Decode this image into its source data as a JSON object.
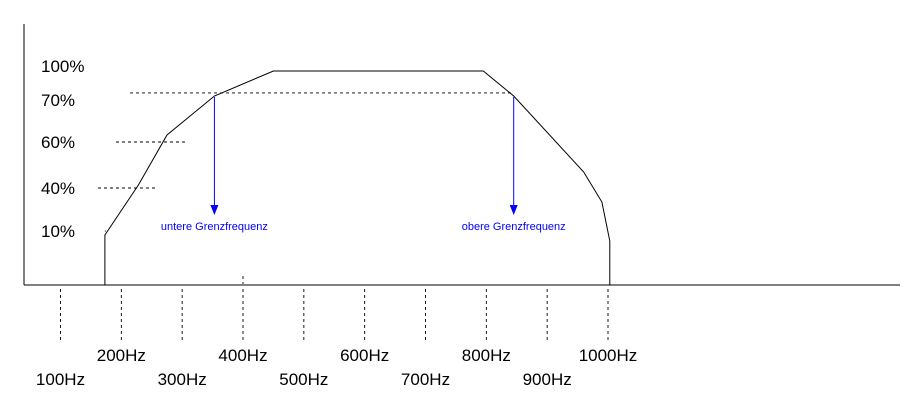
{
  "chart_data": {
    "type": "line",
    "title": "",
    "xlabel": "",
    "ylabel": "",
    "x_ticks": [
      {
        "value": 100,
        "label": "100Hz"
      },
      {
        "value": 200,
        "label": "200Hz"
      },
      {
        "value": 300,
        "label": "300Hz"
      },
      {
        "value": 400,
        "label": "400Hz"
      },
      {
        "value": 500,
        "label": "500Hz"
      },
      {
        "value": 600,
        "label": "600Hz"
      },
      {
        "value": 700,
        "label": "700Hz"
      },
      {
        "value": 800,
        "label": "800Hz"
      },
      {
        "value": 900,
        "label": "900Hz"
      },
      {
        "value": 1000,
        "label": "1000Hz"
      }
    ],
    "y_levels": [
      {
        "value": 100,
        "label": "100%",
        "guide_to_x": null
      },
      {
        "value": 70,
        "label": "70%",
        "guide_to_x": 845
      },
      {
        "value": 60,
        "label": "60%",
        "guide_to_x": 308
      },
      {
        "value": 40,
        "label": "40%",
        "guide_to_x": 258
      },
      {
        "value": 10,
        "label": "10%",
        "guide_to_x": 173
      }
    ],
    "series": [
      {
        "points": [
          {
            "x": 173,
            "y": 0
          },
          {
            "x": 173,
            "y": 18
          },
          {
            "x": 228,
            "y": 40
          },
          {
            "x": 275,
            "y": 56
          },
          {
            "x": 353,
            "y": 70
          },
          {
            "x": 450,
            "y": 78
          },
          {
            "x": 795,
            "y": 78
          },
          {
            "x": 845,
            "y": 70
          },
          {
            "x": 960,
            "y": 42
          },
          {
            "x": 990,
            "y": 34
          },
          {
            "x": 1003,
            "y": 17
          },
          {
            "x": 1003,
            "y": 0
          }
        ]
      }
    ],
    "annotations": [
      {
        "text": "untere Grenzfrequenz",
        "x": 353,
        "y_from": 70,
        "y_to": 25
      },
      {
        "text": "obere Grenzfrequenz",
        "x": 845,
        "y_from": 70,
        "y_to": 25
      }
    ],
    "xlim": [
      40,
      1480
    ],
    "ylim": [
      0,
      100
    ],
    "grid": false,
    "legend": "none",
    "colors": {
      "curve": "#000000",
      "annotation": "#0000ff"
    }
  }
}
